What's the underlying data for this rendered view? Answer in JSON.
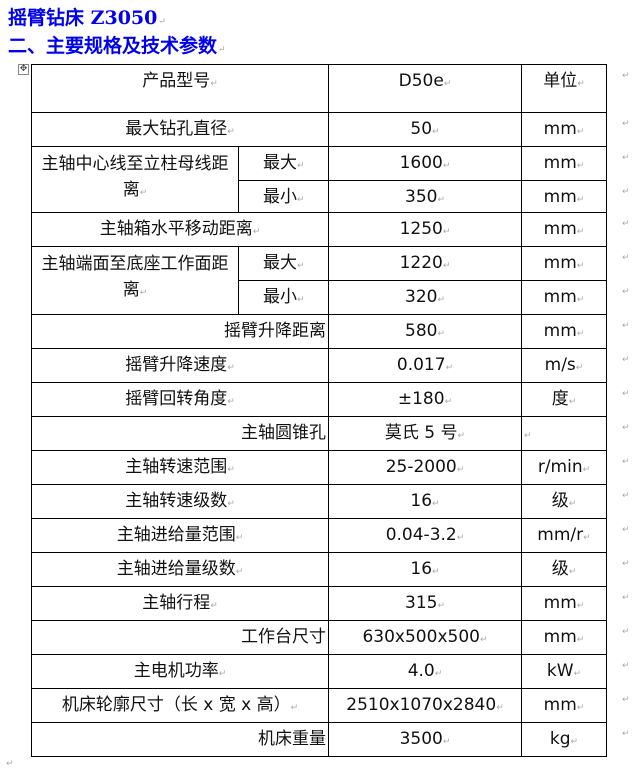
{
  "title": "摇臂钻床 Z3050",
  "section": "二、主要规格及技术参数",
  "table": {
    "header": {
      "name": "产品型号",
      "model": "D50e",
      "unit": "单位"
    },
    "rows": [
      {
        "name": "最大钻孔直径",
        "value": "50",
        "unit": "mm"
      },
      {
        "name": "主轴中心线至立柱母线距离",
        "sub": [
          {
            "label": "最大",
            "value": "1600",
            "unit": "mm"
          },
          {
            "label": "最小",
            "value": "350",
            "unit": "mm"
          }
        ]
      },
      {
        "name": "主轴箱水平移动距离",
        "value": "1250",
        "unit": "mm"
      },
      {
        "name": "主轴端面至底座工作面距离",
        "sub": [
          {
            "label": "最大",
            "value": "1220",
            "unit": "mm"
          },
          {
            "label": "最小",
            "value": "320",
            "unit": "mm"
          }
        ]
      },
      {
        "name": "摇臂升降距离",
        "value": "580",
        "unit": "mm"
      },
      {
        "name": "摇臂升降速度",
        "value": "0.017",
        "unit": "m/s"
      },
      {
        "name": "摇臂回转角度",
        "value": "±180",
        "unit": "度"
      },
      {
        "name": "主轴圆锥孔",
        "value": "莫氏 5 号",
        "unit": ""
      },
      {
        "name": "主轴转速范围",
        "value": "25-2000",
        "unit": "r/min"
      },
      {
        "name": "主轴转速级数",
        "value": "16",
        "unit": "级"
      },
      {
        "name": "主轴进给量范围",
        "value": "0.04-3.2",
        "unit": "mm/r"
      },
      {
        "name": "主轴进给量级数",
        "value": "16",
        "unit": "级"
      },
      {
        "name": "主轴行程",
        "value": "315",
        "unit": "mm"
      },
      {
        "name": "工作台尺寸",
        "value": "630x500x500",
        "unit": "mm"
      },
      {
        "name": "主电机功率",
        "value": "4.0",
        "unit": "kW"
      },
      {
        "name": "机床轮廓尺寸（长 x 宽 x 高）",
        "value": "2510x1070x2840",
        "unit": "mm"
      },
      {
        "name": "机床重量",
        "value": "3500",
        "unit": "kg"
      }
    ]
  }
}
